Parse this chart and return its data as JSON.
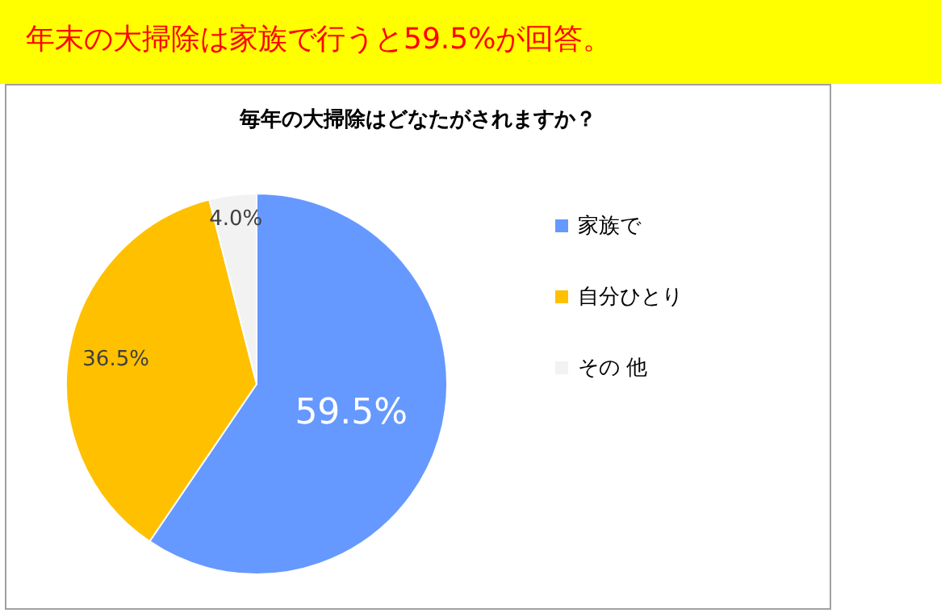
{
  "chart_data": {
    "type": "pie",
    "title": "年末の大掃除は家族で行うと59.5%が回答。",
    "subtitle": "毎年の大掃除はどなたがされますか？",
    "categories": [
      "家族で",
      "自分ひとり",
      "その 他"
    ],
    "values": [
      59.5,
      36.5,
      4.0
    ],
    "value_labels": [
      "59.5%",
      "36.5%",
      "4.0%"
    ],
    "colors": [
      "#6699ff",
      "#ffc000",
      "#f2f2f2"
    ],
    "legend": "right"
  }
}
